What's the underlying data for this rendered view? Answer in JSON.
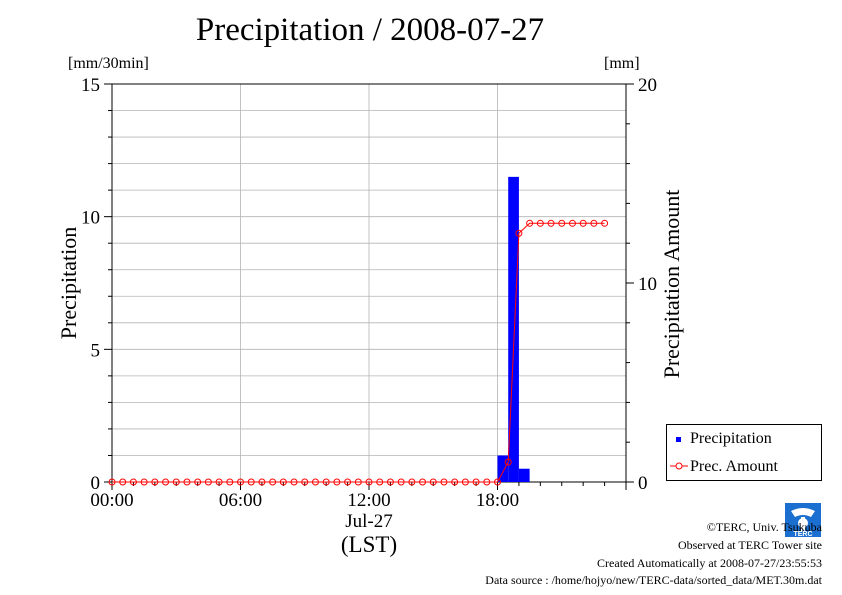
{
  "title": "Precipitation / 2008-07-27",
  "units": {
    "left": "[mm/30min]",
    "right": "[mm]"
  },
  "chart_data": {
    "type": "bar",
    "x_axis": {
      "ticks": [
        "00:00",
        "06:00",
        "12:00",
        "18:00"
      ],
      "date_label": "Jul-27",
      "label": "(LST)",
      "range_hours": [
        0,
        24
      ]
    },
    "y_left": {
      "label": "Precipitation",
      "ylim": [
        0,
        15
      ],
      "ticks": [
        "0",
        "5",
        "10",
        "15"
      ]
    },
    "y_right": {
      "label": "Precipitation Amount",
      "ylim": [
        0,
        20
      ],
      "ticks": [
        "0",
        "10",
        "20"
      ]
    },
    "grid": true,
    "legend_position": "bottom-right",
    "series": [
      {
        "name": "Precipitation",
        "kind": "bar",
        "axis": "left",
        "color": "#0000ff",
        "x_hours": [
          18.0,
          18.5,
          19.0
        ],
        "values": [
          1.0,
          11.5,
          0.5
        ]
      },
      {
        "name": "Prec. Amount",
        "kind": "line",
        "axis": "right",
        "color": "#ff0000",
        "interval_hours": 0.5,
        "values": [
          0,
          0,
          0,
          0,
          0,
          0,
          0,
          0,
          0,
          0,
          0,
          0,
          0,
          0,
          0,
          0,
          0,
          0,
          0,
          0,
          0,
          0,
          0,
          0,
          0,
          0,
          0,
          0,
          0,
          0,
          0,
          0,
          0,
          0,
          0,
          0,
          0,
          1.0,
          12.5,
          13.0,
          13.0,
          13.0,
          13.0,
          13.0,
          13.0,
          13.0,
          13.0
        ]
      }
    ]
  },
  "footer": {
    "copyright": "©TERC, Univ. Tsukuba",
    "observed": "Observed at TERC Tower site",
    "created": "Created Automatically at 2008-07-27/23:55:53",
    "source": "Data source : /home/hojyo/new/TERC-data/sorted_data/MET.30m.dat",
    "logo_text": "TERC"
  },
  "colors": {
    "bar": "#0000ff",
    "line": "#ff0000",
    "grid": "#b4b4b4"
  }
}
